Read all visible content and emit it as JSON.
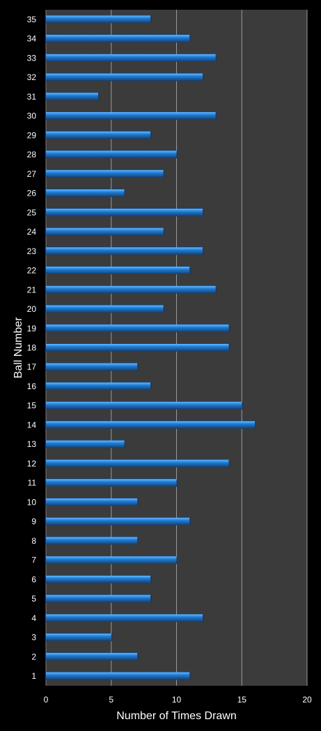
{
  "chart_data": {
    "type": "bar",
    "orientation": "horizontal",
    "xlabel": "Number of Times Drawn",
    "ylabel": "Ball Number",
    "xlim": [
      0,
      20
    ],
    "xticks": [
      0,
      5,
      10,
      15,
      20
    ],
    "grid": "vertical",
    "categories": [
      "1",
      "2",
      "3",
      "4",
      "5",
      "6",
      "7",
      "8",
      "9",
      "10",
      "11",
      "12",
      "13",
      "14",
      "15",
      "16",
      "17",
      "18",
      "19",
      "20",
      "21",
      "22",
      "23",
      "24",
      "25",
      "26",
      "27",
      "28",
      "29",
      "30",
      "31",
      "32",
      "33",
      "34",
      "35"
    ],
    "values": [
      11,
      7,
      5,
      12,
      8,
      8,
      10,
      7,
      11,
      7,
      10,
      14,
      6,
      16,
      15,
      8,
      7,
      14,
      14,
      9,
      13,
      11,
      12,
      9,
      12,
      6,
      9,
      10,
      8,
      13,
      4,
      12,
      13,
      11,
      8
    ]
  },
  "colors": {
    "background": "#000000",
    "plot_area": "#3b3b3b",
    "bar": "#1e7fd6",
    "bar_highlight": "#6ab8ff",
    "bar_shadow": "#0b3f7a",
    "gridline": "#9a9a9a",
    "text": "#ffffff"
  }
}
